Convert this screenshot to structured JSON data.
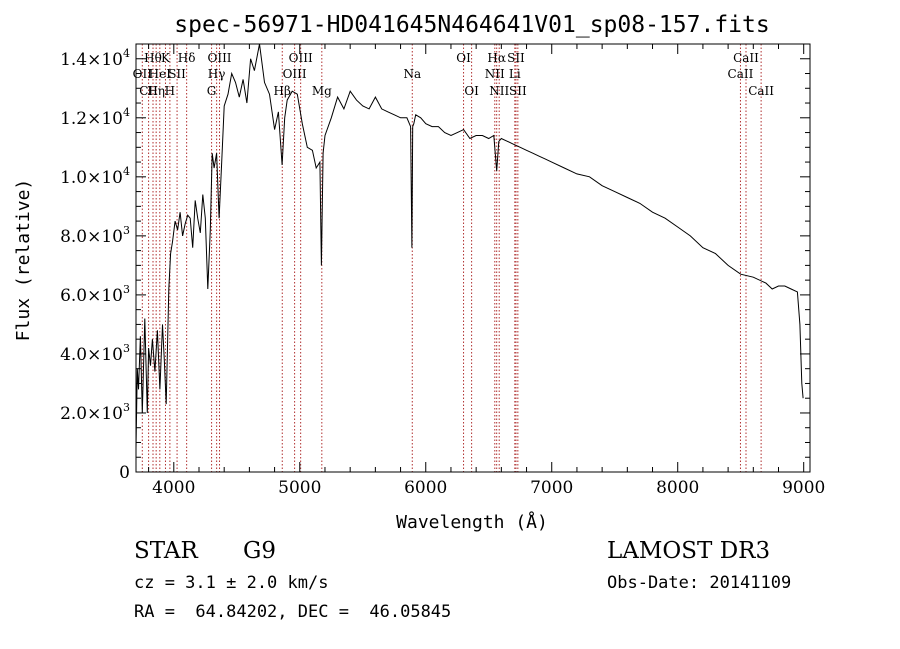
{
  "chart_data": {
    "type": "line",
    "title": "spec-56971-HD041645N464641V01_sp08-157.fits",
    "xlabel": "Wavelength (Å)",
    "ylabel": "Flux (relative)",
    "xlim": [
      3700,
      9050
    ],
    "ylim": [
      0,
      14500
    ],
    "x_ticks": [
      4000,
      5000,
      6000,
      7000,
      8000,
      9000
    ],
    "x_tick_labels": [
      "4000",
      "5000",
      "6000",
      "7000",
      "8000",
      "9000"
    ],
    "y_ticks": [
      0,
      2000,
      4000,
      6000,
      8000,
      10000,
      12000,
      14000
    ],
    "y_tick_labels": [
      {
        "mant": "0",
        "exp": ""
      },
      {
        "mant": "2.0×10",
        "exp": "3"
      },
      {
        "mant": "4.0×10",
        "exp": "3"
      },
      {
        "mant": "6.0×10",
        "exp": "3"
      },
      {
        "mant": "8.0×10",
        "exp": "3"
      },
      {
        "mant": "1.0×10",
        "exp": "4"
      },
      {
        "mant": "1.2×10",
        "exp": "4"
      },
      {
        "mant": "1.4×10",
        "exp": "4"
      }
    ],
    "series": [
      {
        "name": "flux",
        "x": [
          3700,
          3710,
          3720,
          3735,
          3750,
          3770,
          3790,
          3800,
          3815,
          3830,
          3850,
          3870,
          3890,
          3910,
          3925,
          3940,
          3960,
          3975,
          3990,
          4010,
          4030,
          4050,
          4070,
          4090,
          4110,
          4130,
          4150,
          4170,
          4190,
          4210,
          4230,
          4250,
          4270,
          4290,
          4305,
          4320,
          4340,
          4360,
          4380,
          4400,
          4430,
          4460,
          4490,
          4520,
          4550,
          4580,
          4610,
          4640,
          4680,
          4720,
          4760,
          4800,
          4830,
          4860,
          4880,
          4900,
          4940,
          4980,
          5020,
          5060,
          5100,
          5130,
          5160,
          5172,
          5185,
          5200,
          5250,
          5300,
          5350,
          5400,
          5450,
          5500,
          5550,
          5600,
          5650,
          5700,
          5750,
          5800,
          5850,
          5880,
          5890,
          5896,
          5905,
          5920,
          5960,
          6000,
          6050,
          6100,
          6150,
          6200,
          6250,
          6300,
          6350,
          6400,
          6450,
          6500,
          6540,
          6563,
          6580,
          6600,
          6650,
          6700,
          6750,
          6800,
          6850,
          6900,
          6950,
          7000,
          7100,
          7200,
          7300,
          7400,
          7500,
          7600,
          7700,
          7800,
          7900,
          8000,
          8100,
          8200,
          8300,
          8400,
          8500,
          8600,
          8700,
          8750,
          8800,
          8850,
          8900,
          8950,
          8970,
          8985,
          8995
        ],
        "y": [
          800,
          3500,
          2800,
          4600,
          2000,
          5200,
          2000,
          4200,
          3600,
          4500,
          3400,
          4800,
          2800,
          5000,
          3800,
          2300,
          6200,
          7400,
          7800,
          8500,
          8200,
          8800,
          8000,
          8400,
          8700,
          8600,
          7600,
          9200,
          8600,
          8100,
          9400,
          8600,
          6200,
          8200,
          10800,
          10300,
          10800,
          8600,
          10500,
          12400,
          12800,
          13500,
          13200,
          12700,
          13300,
          12500,
          14000,
          13600,
          14500,
          13200,
          12800,
          11600,
          12200,
          10400,
          12000,
          12600,
          12900,
          12800,
          11800,
          11000,
          10900,
          10300,
          10500,
          7000,
          10800,
          11400,
          12000,
          12700,
          12300,
          12900,
          12600,
          12400,
          12300,
          12700,
          12300,
          12200,
          12100,
          12000,
          12000,
          11700,
          7600,
          11700,
          11800,
          12100,
          12000,
          11800,
          11700,
          11700,
          11500,
          11400,
          11500,
          11600,
          11300,
          11400,
          11400,
          11300,
          11400,
          10200,
          11200,
          11300,
          11200,
          11100,
          11000,
          10900,
          10800,
          10700,
          10600,
          10500,
          10300,
          10100,
          10000,
          9700,
          9500,
          9300,
          9100,
          8800,
          8600,
          8300,
          8000,
          7600,
          7400,
          7000,
          6700,
          6600,
          6400,
          6200,
          6300,
          6300,
          6200,
          6100,
          5000,
          3000,
          2500
        ]
      }
    ],
    "lines": [
      {
        "x": 3750,
        "label": "OII",
        "row": 2
      },
      {
        "x": 3800,
        "label": "CII",
        "row": 3
      },
      {
        "x": 3835,
        "label": "Hθ",
        "row": 1
      },
      {
        "x": 3860,
        "label": "Hη",
        "row": 3
      },
      {
        "x": 3889,
        "label": "HeI",
        "row": 2
      },
      {
        "x": 3934,
        "label": "K",
        "row": 1
      },
      {
        "x": 3969,
        "label": "H",
        "row": 3
      },
      {
        "x": 4026,
        "label": "SII",
        "row": 2
      },
      {
        "x": 4102,
        "label": "Hδ",
        "row": 1
      },
      {
        "x": 4300,
        "label": "G",
        "row": 3
      },
      {
        "x": 4340,
        "label": "Hγ",
        "row": 2
      },
      {
        "x": 4363,
        "label": "OIII",
        "row": 1
      },
      {
        "x": 4861,
        "label": "Hβ",
        "row": 3
      },
      {
        "x": 4959,
        "label": "OIII",
        "row": 2
      },
      {
        "x": 5007,
        "label": "OIII",
        "row": 1
      },
      {
        "x": 5175,
        "label": "Mg",
        "row": 3
      },
      {
        "x": 5893,
        "label": "Na",
        "row": 2
      },
      {
        "x": 6300,
        "label": "OI",
        "row": 1
      },
      {
        "x": 6364,
        "label": "OI",
        "row": 3
      },
      {
        "x": 6548,
        "label": "NII",
        "row": 2
      },
      {
        "x": 6563,
        "label": "Hα",
        "row": 1
      },
      {
        "x": 6583,
        "label": "NII",
        "row": 3
      },
      {
        "x": 6707,
        "label": "Li",
        "row": 2
      },
      {
        "x": 6716,
        "label": "SII",
        "row": 1
      },
      {
        "x": 6731,
        "label": "SII",
        "row": 3
      },
      {
        "x": 8498,
        "label": "CaII",
        "row": 2
      },
      {
        "x": 8542,
        "label": "CaII",
        "row": 1
      },
      {
        "x": 8662,
        "label": "CaII",
        "row": 3
      }
    ]
  },
  "info": {
    "class": "STAR",
    "subclass": "G9",
    "survey": "LAMOST DR3",
    "cz": "cz = 3.1 ± 2.0 km/s",
    "obs_date": "Obs-Date: 20141109",
    "coords": "RA =  64.84202, DEC =  46.05845"
  },
  "colors": {
    "spectrum": "#000000",
    "line_marker": "#b03030",
    "axis": "#000000"
  }
}
